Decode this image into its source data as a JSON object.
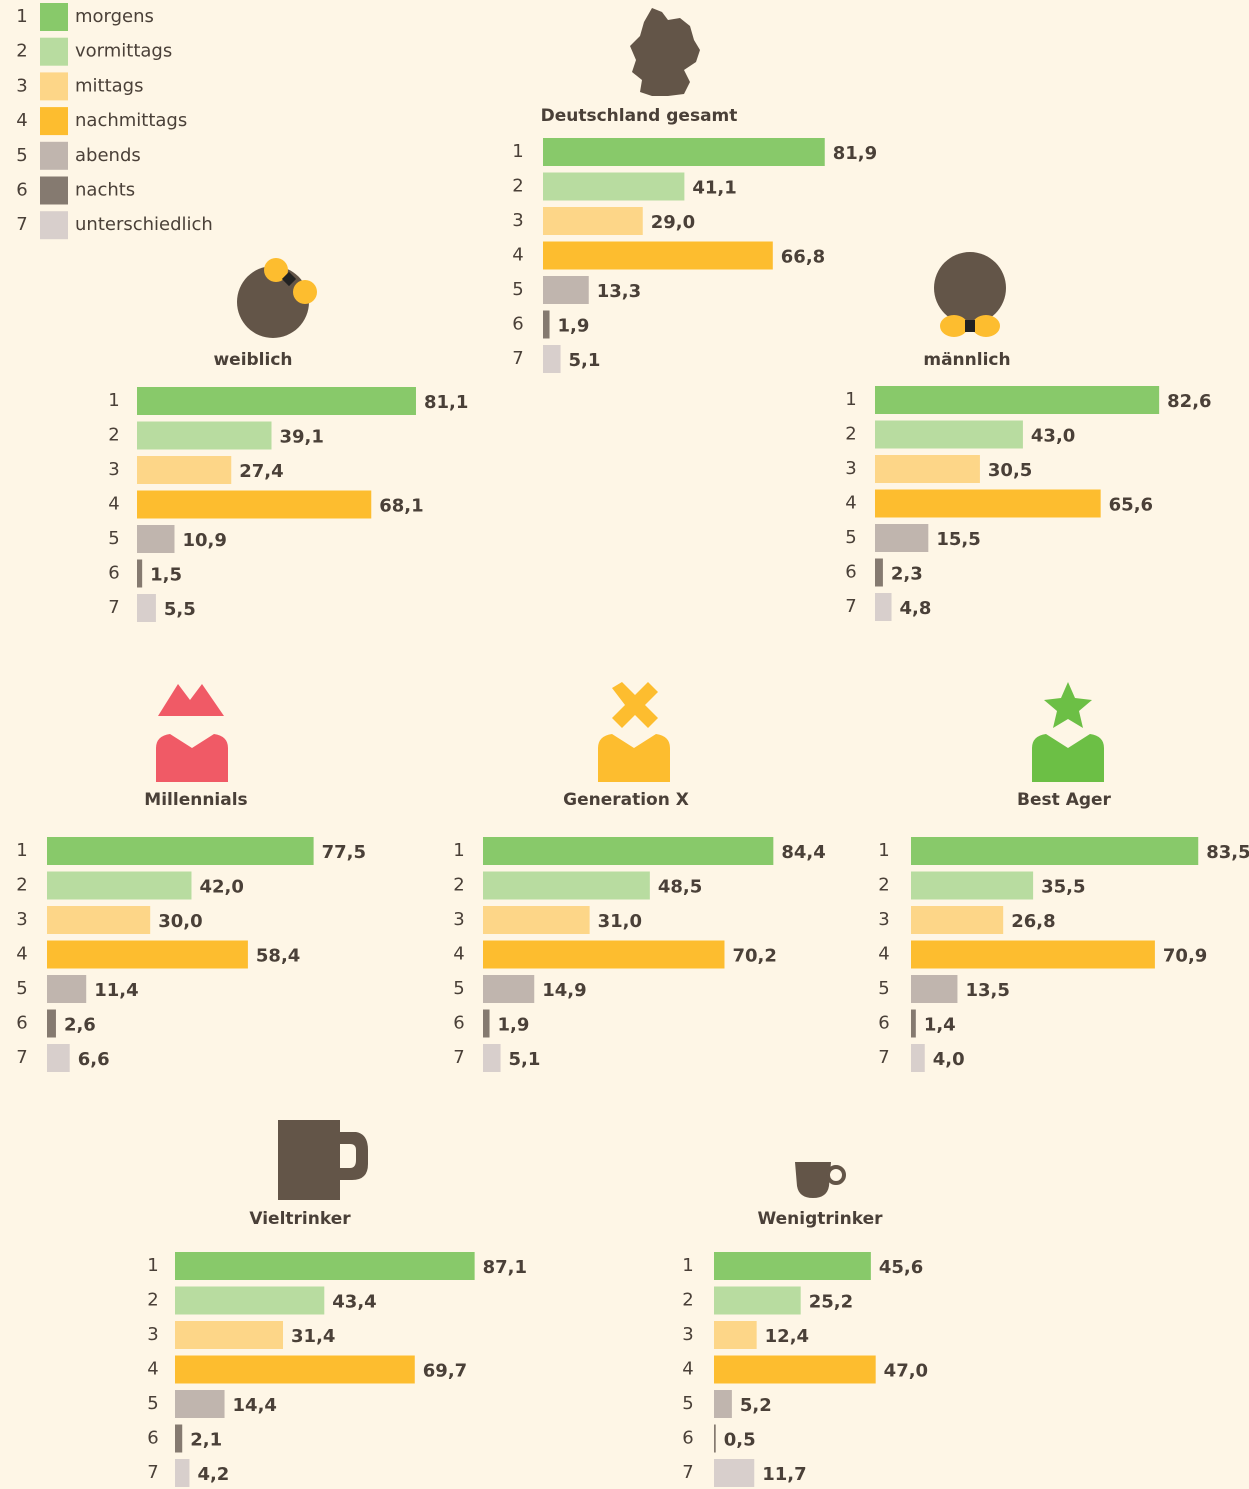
{
  "legend": {
    "items": [
      {
        "key": "1",
        "label": "morgens",
        "color": "#88c96a"
      },
      {
        "key": "2",
        "label": "vormittags",
        "color": "#b8dca0"
      },
      {
        "key": "3",
        "label": "mittags",
        "color": "#fdd688"
      },
      {
        "key": "4",
        "label": "nachmittags",
        "color": "#fdbd2f"
      },
      {
        "key": "5",
        "label": "abends",
        "color": "#c0b5ae"
      },
      {
        "key": "6",
        "label": "nachts",
        "color": "#857a70"
      },
      {
        "key": "7",
        "label": "unterschiedlich",
        "color": "#d8cfcc"
      }
    ]
  },
  "chart_data": [
    {
      "type": "bar",
      "title": "Deutschland gesamt",
      "categories": [
        "1",
        "2",
        "3",
        "4",
        "5",
        "6",
        "7"
      ],
      "values": [
        81.9,
        41.1,
        29.0,
        66.8,
        13.3,
        1.9,
        5.1
      ],
      "value_labels": [
        "81,9",
        "41,1",
        "29,0",
        "66,8",
        "13,3",
        "1,9",
        "5,1"
      ]
    },
    {
      "type": "bar",
      "title": "weiblich",
      "categories": [
        "1",
        "2",
        "3",
        "4",
        "5",
        "6",
        "7"
      ],
      "values": [
        81.1,
        39.1,
        27.4,
        68.1,
        10.9,
        1.5,
        5.5
      ],
      "value_labels": [
        "81,1",
        "39,1",
        "27,4",
        "68,1",
        "10,9",
        "1,5",
        "5,5"
      ]
    },
    {
      "type": "bar",
      "title": "männlich",
      "categories": [
        "1",
        "2",
        "3",
        "4",
        "5",
        "6",
        "7"
      ],
      "values": [
        82.6,
        43.0,
        30.5,
        65.6,
        15.5,
        2.3,
        4.8
      ],
      "value_labels": [
        "82,6",
        "43,0",
        "30,5",
        "65,6",
        "15,5",
        "2,3",
        "4,8"
      ]
    },
    {
      "type": "bar",
      "title": "Millennials",
      "categories": [
        "1",
        "2",
        "3",
        "4",
        "5",
        "6",
        "7"
      ],
      "values": [
        77.5,
        42.0,
        30.0,
        58.4,
        11.4,
        2.6,
        6.6
      ],
      "value_labels": [
        "77,5",
        "42,0",
        "30,0",
        "58,4",
        "11,4",
        "2,6",
        "6,6"
      ]
    },
    {
      "type": "bar",
      "title": "Generation X",
      "categories": [
        "1",
        "2",
        "3",
        "4",
        "5",
        "6",
        "7"
      ],
      "values": [
        84.4,
        48.5,
        31.0,
        70.2,
        14.9,
        1.9,
        5.1
      ],
      "value_labels": [
        "84,4",
        "48,5",
        "31,0",
        "70,2",
        "14,9",
        "1,9",
        "5,1"
      ]
    },
    {
      "type": "bar",
      "title": "Best Ager",
      "categories": [
        "1",
        "2",
        "3",
        "4",
        "5",
        "6",
        "7"
      ],
      "values": [
        83.5,
        35.5,
        26.8,
        70.9,
        13.5,
        1.4,
        4.0
      ],
      "value_labels": [
        "83,5",
        "35,5",
        "26,8",
        "70,9",
        "13,5",
        "1,4",
        "4,0"
      ]
    },
    {
      "type": "bar",
      "title": "Vieltrinker",
      "categories": [
        "1",
        "2",
        "3",
        "4",
        "5",
        "6",
        "7"
      ],
      "values": [
        87.1,
        43.4,
        31.4,
        69.7,
        14.4,
        2.1,
        4.2
      ],
      "value_labels": [
        "87,1",
        "43,4",
        "31,4",
        "69,7",
        "14,4",
        "2,1",
        "4,2"
      ]
    },
    {
      "type": "bar",
      "title": "Wenigtrinker",
      "categories": [
        "1",
        "2",
        "3",
        "4",
        "5",
        "6",
        "7"
      ],
      "values": [
        45.6,
        25.2,
        12.4,
        47.0,
        5.2,
        0.5,
        11.7
      ],
      "value_labels": [
        "45,6",
        "25,2",
        "12,4",
        "47,0",
        "5,2",
        "0,5",
        "11,7"
      ]
    }
  ]
}
